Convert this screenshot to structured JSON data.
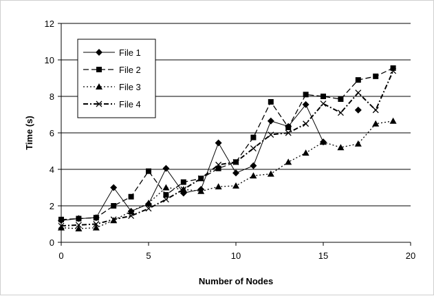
{
  "chart_data": {
    "type": "line",
    "title": "",
    "xlabel": "Number of Nodes",
    "ylabel": "Time (s)",
    "xlim": [
      0,
      20
    ],
    "ylim": [
      0,
      12
    ],
    "x_ticks": [
      0,
      5,
      10,
      15,
      20
    ],
    "y_ticks": [
      0,
      2,
      4,
      6,
      8,
      10,
      12
    ],
    "grid": "horizontal",
    "legend_position": "top-left",
    "series": [
      {
        "name": "File 1",
        "marker": "diamond",
        "dash": "solid",
        "color": "#000000",
        "x": [
          0,
          1,
          2,
          3,
          4,
          5,
          6,
          7,
          8,
          9,
          10,
          11,
          12,
          13,
          14,
          15,
          16,
          17,
          18,
          19
        ],
        "y": [
          1.2,
          1.3,
          1.35,
          3.0,
          1.7,
          2.1,
          4.05,
          2.7,
          2.9,
          5.45,
          3.8,
          4.2,
          6.65,
          6.35,
          7.55,
          5.5,
          null,
          7.25,
          null,
          null
        ]
      },
      {
        "name": "File 2",
        "marker": "square",
        "dash": "dash",
        "color": "#000000",
        "x": [
          0,
          1,
          2,
          3,
          4,
          5,
          6,
          7,
          8,
          9,
          10,
          11,
          12,
          13,
          14,
          15,
          16,
          17,
          18,
          19
        ],
        "y": [
          1.25,
          1.3,
          1.35,
          2.0,
          2.5,
          3.9,
          2.6,
          3.3,
          3.5,
          4.05,
          4.4,
          5.75,
          7.7,
          6.3,
          8.1,
          8.0,
          7.85,
          8.9,
          9.1,
          9.55
        ]
      },
      {
        "name": "File 3",
        "marker": "triangle",
        "dash": "dot",
        "color": "#000000",
        "x": [
          0,
          1,
          2,
          3,
          4,
          5,
          6,
          7,
          8,
          9,
          10,
          11,
          12,
          13,
          14,
          15,
          16,
          17,
          18,
          19
        ],
        "y": [
          0.8,
          0.75,
          0.8,
          1.2,
          1.7,
          2.15,
          3.0,
          2.9,
          2.8,
          3.05,
          3.1,
          3.65,
          3.75,
          4.4,
          4.9,
          5.5,
          5.2,
          5.4,
          6.5,
          6.65
        ]
      },
      {
        "name": "File 4",
        "marker": "x",
        "dash": "dashdot",
        "color": "#000000",
        "x": [
          0,
          1,
          2,
          3,
          4,
          5,
          6,
          7,
          8,
          9,
          10,
          11,
          12,
          13,
          14,
          15,
          16,
          17,
          18,
          19
        ],
        "y": [
          0.9,
          0.95,
          1.0,
          1.25,
          1.45,
          1.85,
          2.35,
          2.9,
          3.5,
          4.25,
          4.4,
          5.15,
          5.9,
          6.0,
          6.5,
          7.6,
          7.1,
          8.2,
          7.25,
          9.4
        ]
      }
    ]
  }
}
